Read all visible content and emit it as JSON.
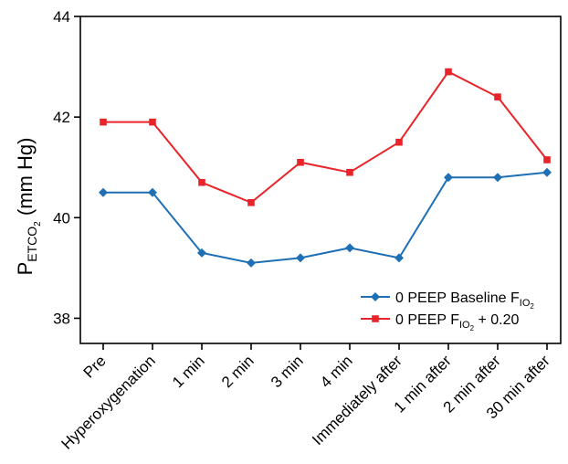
{
  "chart_data": {
    "type": "line",
    "title": "",
    "xlabel": "",
    "ylabel": {
      "main": "P",
      "subscript": "ETCO",
      "sub_subscript": "2",
      "unit": "(mm Hg)"
    },
    "ylim": [
      37.5,
      44
    ],
    "yticks": [
      38,
      40,
      42,
      44
    ],
    "grid": false,
    "legend_position": "bottom-right",
    "categories": [
      "Pre",
      "Hyperoxygenation",
      "1 min",
      "2 min",
      "3 min",
      "4 min",
      "Immediately after",
      "1 min after",
      "2 min after",
      "30 min after"
    ],
    "series": [
      {
        "name": "0 PEEP Baseline F",
        "name_subscript": "IO",
        "name_sub_subscript": "2",
        "name_suffix": "",
        "color": "#1f6fb4",
        "marker": "diamond",
        "values": [
          40.5,
          40.5,
          39.3,
          39.1,
          39.2,
          39.4,
          39.2,
          40.8,
          40.8,
          40.9
        ]
      },
      {
        "name": "0 PEEP F",
        "name_subscript": "IO",
        "name_sub_subscript": "2",
        "name_suffix": " + 0.20",
        "color": "#e8242a",
        "marker": "square",
        "values": [
          41.9,
          41.9,
          40.7,
          40.3,
          41.1,
          40.9,
          41.5,
          42.9,
          42.4,
          41.15
        ]
      }
    ]
  }
}
